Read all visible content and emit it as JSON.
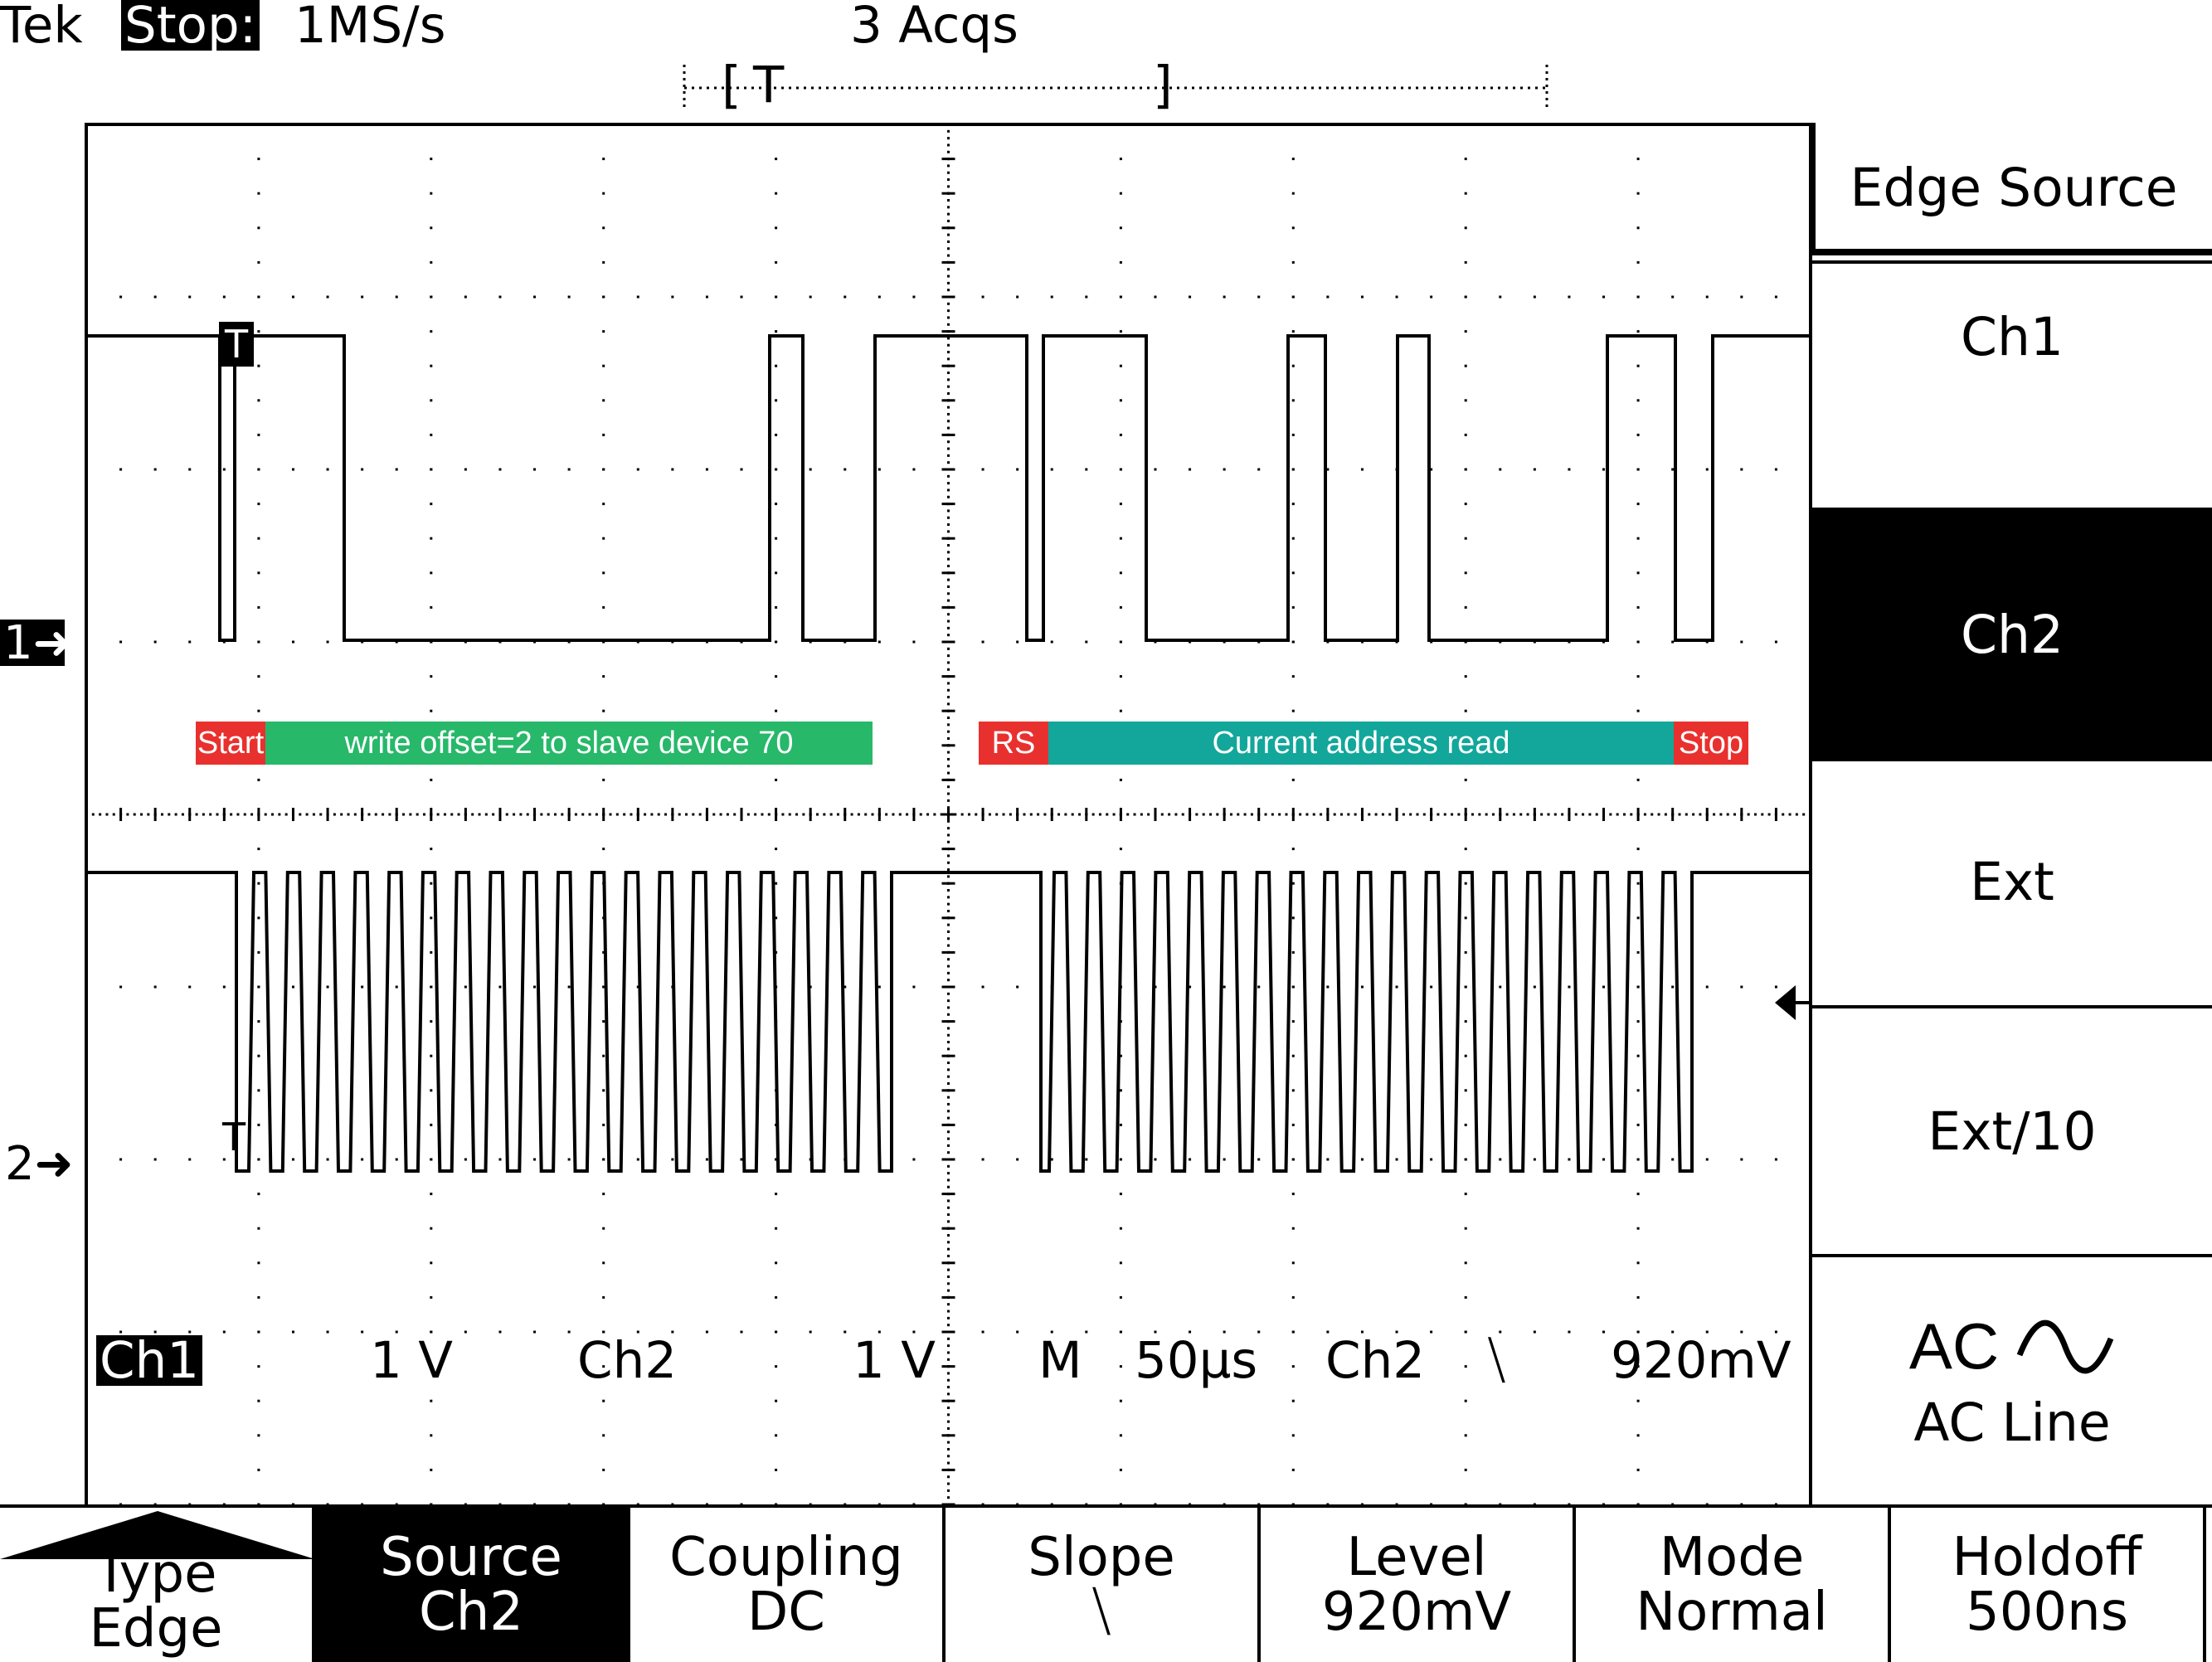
{
  "header": {
    "brand": "Tek",
    "state": "Stop:",
    "rate": "1MS/s",
    "acquisitions": "3 Acqs",
    "trigger_bracket_left": "[",
    "trigger_bracket_right": "]",
    "trigger_marker": "T"
  },
  "display": {
    "trace1_trigger_marker": "T",
    "trace2_trigger_marker": "T",
    "ch1_ground_marker": "1",
    "ch2_ground_marker": "2"
  },
  "annotations": {
    "start": "Start",
    "write": "write offset=2 to slave device 70",
    "restart": "RS",
    "read": "Current address read",
    "stop": "Stop"
  },
  "status": {
    "ch1_label": "Ch1",
    "ch1_scale": "1 V",
    "ch2_label": "Ch2",
    "ch2_scale": "1 V",
    "timebase_prefix": "M",
    "timebase": "50µs",
    "trigger_source": "Ch2",
    "trigger_slope": "⧹",
    "trigger_level": "920mV"
  },
  "side_menu": {
    "title": "Edge Source",
    "items": [
      "Ch1",
      "Ch2",
      "Ext",
      "Ext/10"
    ],
    "selected": "Ch2",
    "ac_label": "AC",
    "ac_sub": "AC Line"
  },
  "bottom_menu": [
    {
      "top": "Type",
      "bottom": "Edge"
    },
    {
      "top": "Source",
      "bottom": "Ch2"
    },
    {
      "top": "Coupling",
      "bottom": "DC"
    },
    {
      "top": "Slope",
      "bottom": "⧹"
    },
    {
      "top": "Level",
      "bottom": "920mV"
    },
    {
      "top": "Mode",
      "bottom": "Normal"
    },
    {
      "top": "Holdoff",
      "bottom": "500ns"
    }
  ],
  "colors": {
    "annotation_red": "#e8312e",
    "annotation_green": "#27b86a",
    "annotation_teal": "#12a79a"
  }
}
